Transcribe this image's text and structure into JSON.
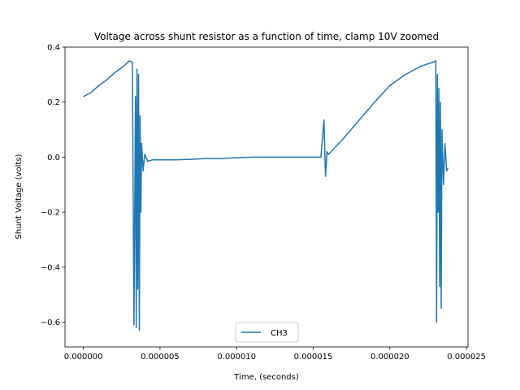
{
  "chart_data": {
    "type": "line",
    "title": "Voltage across shunt resistor as a function of time, clamp 10V zoomed",
    "xlabel": "Time, (seconds)",
    "ylabel": "Shunt Voltage (volts)",
    "xlim": [
      -1.2e-06,
      2.51e-05
    ],
    "ylim": [
      -0.69,
      0.4
    ],
    "x_ticks": [
      0,
      5e-06,
      1e-05,
      1.5e-05,
      2e-05,
      2.5e-05
    ],
    "x_tick_labels": [
      "0.000000",
      "0.000005",
      "0.000010",
      "0.000015",
      "0.000020",
      "0.000025"
    ],
    "y_ticks": [
      -0.6,
      -0.4,
      -0.2,
      0.0,
      0.2,
      0.4
    ],
    "y_tick_labels": [
      "−0.6",
      "−0.4",
      "−0.2",
      "0.0",
      "0.2",
      "0.4"
    ],
    "grid": false,
    "legend_position": "lower center",
    "colors": {
      "series": "#1f77b4"
    },
    "series": [
      {
        "name": "CH3",
        "x": [
          0,
          5e-07,
          1e-06,
          1.5e-06,
          2e-06,
          2.5e-06,
          2.8e-06,
          3e-06,
          3.2e-06,
          3.3e-06,
          3.4e-06,
          3.45e-06,
          3.5e-06,
          3.55e-06,
          3.6e-06,
          3.65e-06,
          3.7e-06,
          3.75e-06,
          3.8e-06,
          3.9e-06,
          4e-06,
          4.2e-06,
          4.5e-06,
          5e-06,
          6e-06,
          7e-06,
          8e-06,
          9e-06,
          1e-05,
          1.1e-05,
          1.2e-05,
          1.3e-05,
          1.4e-05,
          1.5e-05,
          1.55e-05,
          1.57e-05,
          1.58e-05,
          1.59e-05,
          1.6e-05,
          1.7e-05,
          1.8e-05,
          1.9e-05,
          2e-05,
          2.1e-05,
          2.2e-05,
          2.28e-05,
          2.3e-05,
          2.305e-05,
          2.31e-05,
          2.315e-05,
          2.32e-05,
          2.325e-05,
          2.33e-05,
          2.335e-05,
          2.34e-05,
          2.35e-05,
          2.36e-05,
          2.37e-05,
          2.38e-05
        ],
        "y": [
          0.22,
          0.235,
          0.26,
          0.28,
          0.305,
          0.325,
          0.34,
          0.35,
          0.345,
          -0.61,
          0.22,
          -0.62,
          0.32,
          -0.48,
          0.3,
          -0.63,
          0.15,
          -0.2,
          0.05,
          -0.05,
          0.01,
          -0.015,
          -0.01,
          -0.01,
          -0.01,
          -0.008,
          -0.005,
          -0.005,
          -0.002,
          0,
          0,
          0,
          0,
          0,
          0,
          0.135,
          -0.07,
          0.02,
          0.01,
          0.07,
          0.135,
          0.2,
          0.26,
          0.3,
          0.33,
          0.345,
          0.35,
          -0.6,
          0.3,
          -0.2,
          0.25,
          -0.47,
          0.2,
          -0.55,
          0.1,
          -0.1,
          0.05,
          -0.05,
          -0.04
        ]
      }
    ]
  }
}
